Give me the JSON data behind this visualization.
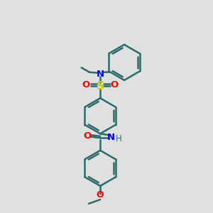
{
  "bg_color": "#dfe0e0",
  "bond_color": "#2d6b6b",
  "bond_width": 1.8,
  "N_color": "#0000ff",
  "O_color": "#ff0000",
  "S_color": "#cccc00",
  "figsize": [
    3.0,
    3.0
  ],
  "dpi": 100,
  "xlim": [
    0,
    10
  ],
  "ylim": [
    0,
    10
  ]
}
